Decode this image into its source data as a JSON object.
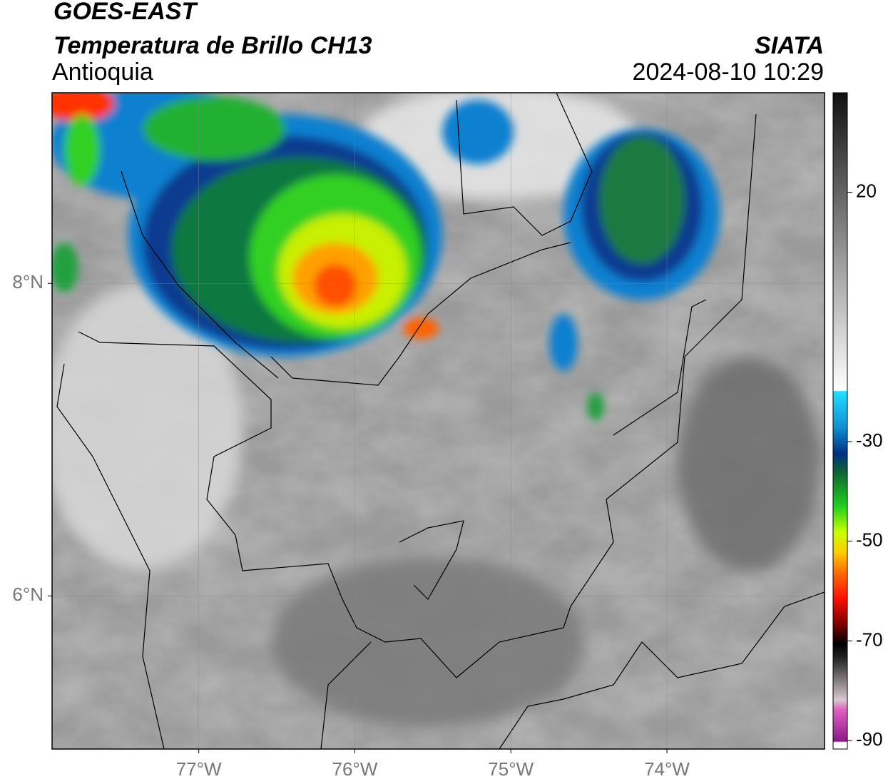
{
  "header": {
    "satellite": "GOES-EAST",
    "product": "Temperatura de Brillo CH13",
    "source": "SIATA",
    "region": "Antioquia",
    "timestamp": "2024-08-10 10:29"
  },
  "map": {
    "lonlim": [
      -77.94,
      -72.99
    ],
    "latlim": [
      5.02,
      9.22
    ],
    "lonticks": [
      {
        "value": -77,
        "label": "77°W"
      },
      {
        "value": -76,
        "label": "76°W"
      },
      {
        "value": -75,
        "label": "75°W"
      },
      {
        "value": -74,
        "label": "74°W"
      }
    ],
    "latticks": [
      {
        "value": 8,
        "label": "8°N"
      },
      {
        "value": 6,
        "label": "6°N"
      }
    ],
    "grid": true
  },
  "colorbar": {
    "lim": [
      -91.7,
      40
    ],
    "ticks": [
      20,
      -30,
      -50,
      -70,
      -90
    ]
  }
}
